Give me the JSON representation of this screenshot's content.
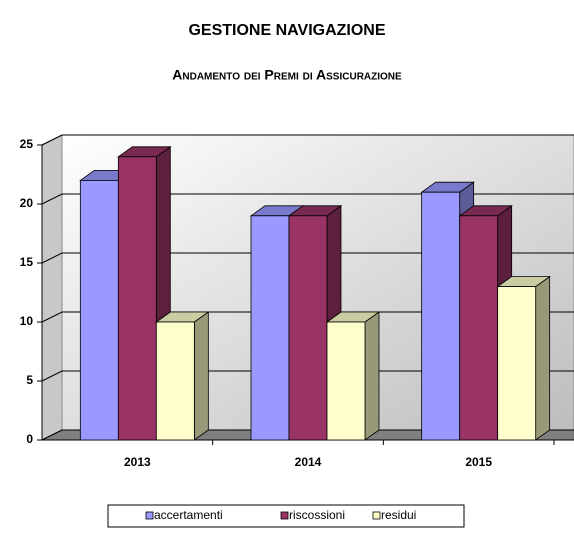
{
  "chart_data": {
    "type": "bar3d",
    "title": "GESTIONE NAVIGAZIONE",
    "subtitle": "Andamento dei Premi di Assicurazione",
    "categories": [
      "2013",
      "2014",
      "2015"
    ],
    "series": [
      {
        "name": "accertamenti",
        "color": "#9999ff",
        "values": [
          22,
          19,
          21
        ]
      },
      {
        "name": "riscossioni",
        "color": "#993366",
        "values": [
          24,
          19,
          19
        ]
      },
      {
        "name": "residui",
        "color": "#ffffcc",
        "values": [
          10,
          10,
          13
        ]
      }
    ],
    "ylim": [
      0,
      25
    ],
    "yticks": [
      0,
      5,
      10,
      15,
      20,
      25
    ],
    "grid": true,
    "legend": "bottom"
  }
}
